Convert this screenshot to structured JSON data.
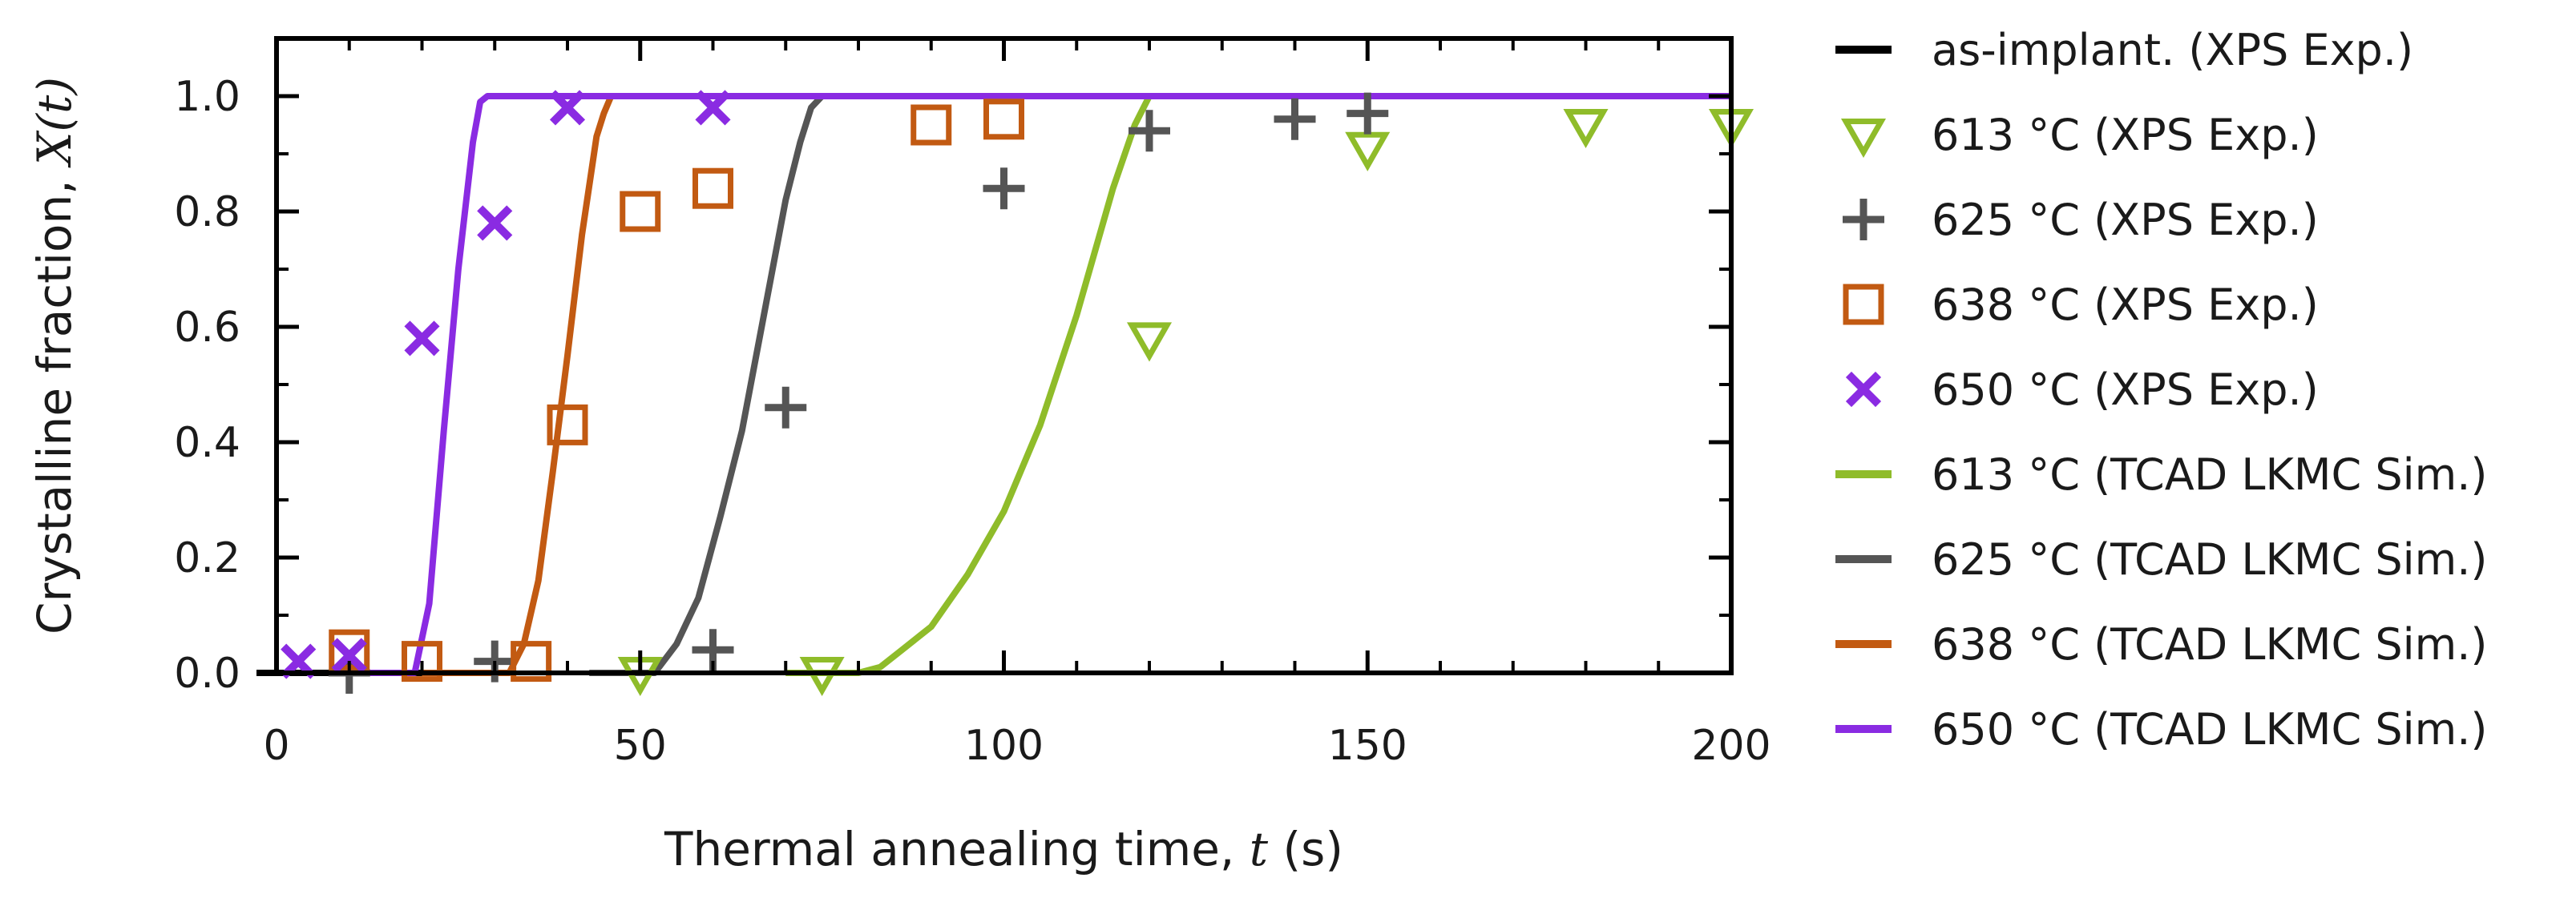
{
  "chart_data": {
    "type": "scatter",
    "title": "",
    "xlabel": {
      "text": "Thermal annealing time, ",
      "var": "t",
      "unit": " (s)"
    },
    "ylabel": {
      "text": "Crystalline fraction, ",
      "var": "X(t)",
      "unit": ""
    },
    "xlim": [
      0,
      200
    ],
    "ylim": [
      0,
      1.1
    ],
    "x_ticks": [
      0,
      50,
      100,
      150,
      200
    ],
    "x_tick_labels": [
      "0",
      "50",
      "100",
      "150",
      "200"
    ],
    "y_ticks": [
      0,
      0.2,
      0.4,
      0.6,
      0.8,
      1.0
    ],
    "y_tick_labels": [
      "0.0",
      "0.2",
      "0.4",
      "0.6",
      "0.8",
      "1.0"
    ],
    "grid": false,
    "legend_position": "outside-right",
    "series": [
      {
        "name": "as-implant. (XPS Exp.)",
        "kind": "line",
        "color": "#000000",
        "x": [
          -5,
          24
        ],
        "y": [
          0,
          0
        ]
      },
      {
        "name": "613 °C (XPS Exp.)",
        "kind": "markers",
        "marker": "triangle-down",
        "color": "#8fbc2a",
        "x": [
          50,
          75,
          120,
          150,
          180,
          200
        ],
        "y": [
          0.0,
          0.0,
          0.58,
          0.91,
          0.95,
          0.95
        ]
      },
      {
        "name": "625 °C (XPS Exp.)",
        "kind": "markers",
        "marker": "plus",
        "color": "#555555",
        "x": [
          10,
          30,
          60,
          70,
          100,
          120,
          140,
          150
        ],
        "y": [
          0.0,
          0.02,
          0.04,
          0.46,
          0.84,
          0.94,
          0.96,
          0.97
        ]
      },
      {
        "name": "638 °C (XPS Exp.)",
        "kind": "markers",
        "marker": "square",
        "color": "#c25a12",
        "x": [
          10,
          20,
          35,
          40,
          50,
          60,
          90,
          100
        ],
        "y": [
          0.04,
          0.02,
          0.02,
          0.43,
          0.8,
          0.84,
          0.95,
          0.96
        ]
      },
      {
        "name": "650 °C (XPS Exp.)",
        "kind": "markers",
        "marker": "cross",
        "color": "#8a2be2",
        "x": [
          3,
          10,
          20,
          30,
          40,
          60
        ],
        "y": [
          0.02,
          0.03,
          0.58,
          0.78,
          0.98,
          0.98
        ]
      },
      {
        "name": "613 °C (TCAD LKMC Sim.)",
        "kind": "line",
        "color": "#8fbc2a",
        "x": [
          70,
          80,
          83,
          86,
          90,
          95,
          100,
          105,
          110,
          115,
          118,
          120,
          200
        ],
        "y": [
          0,
          0,
          0.01,
          0.04,
          0.08,
          0.17,
          0.28,
          0.43,
          0.62,
          0.84,
          0.95,
          1.0,
          1.0
        ]
      },
      {
        "name": "625 °C (TCAD LKMC Sim.)",
        "kind": "line",
        "color": "#555555",
        "x": [
          43,
          52,
          55,
          58,
          61,
          64,
          67,
          70,
          72,
          73.5,
          75,
          200
        ],
        "y": [
          0,
          0,
          0.05,
          0.13,
          0.27,
          0.42,
          0.62,
          0.82,
          0.92,
          0.98,
          1.0,
          1.0
        ]
      },
      {
        "name": "638 °C (TCAD LKMC Sim.)",
        "kind": "line",
        "color": "#c25a12",
        "x": [
          20,
          32,
          34,
          36,
          38,
          40,
          42,
          44,
          45,
          46,
          200
        ],
        "y": [
          0,
          0,
          0.05,
          0.16,
          0.35,
          0.55,
          0.76,
          0.93,
          0.97,
          1.0,
          1.0
        ]
      },
      {
        "name": "650 °C (TCAD LKMC Sim.)",
        "kind": "line",
        "color": "#8a2be2",
        "x": [
          8,
          19,
          21,
          23,
          25,
          27,
          28,
          29,
          30,
          200
        ],
        "y": [
          0,
          0,
          0.12,
          0.42,
          0.7,
          0.92,
          0.99,
          1.0,
          1.0,
          1.0
        ]
      }
    ]
  }
}
